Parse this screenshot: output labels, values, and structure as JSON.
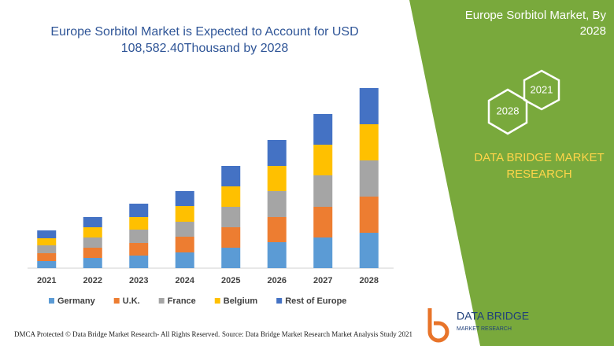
{
  "chart_data": {
    "type": "stacked-bar",
    "title": "Europe Sorbitol Market is Expected to Account for USD 108,582.40Thousand by 2028",
    "categories": [
      "2021",
      "2022",
      "2023",
      "2024",
      "2025",
      "2026",
      "2027",
      "2028"
    ],
    "series": [
      {
        "name": "Germany",
        "color": "#5b9bd5",
        "values": [
          9,
          13,
          16,
          20,
          26,
          33,
          39,
          45
        ]
      },
      {
        "name": "U.K.",
        "color": "#ed7d31",
        "values": [
          10,
          13,
          16,
          20,
          26,
          32,
          39,
          46
        ]
      },
      {
        "name": "France",
        "color": "#a5a5a5",
        "values": [
          10,
          13,
          17,
          19,
          26,
          33,
          40,
          46
        ]
      },
      {
        "name": "Belgium",
        "color": "#ffc000",
        "values": [
          9,
          13,
          16,
          20,
          26,
          32,
          39,
          46
        ]
      },
      {
        "name": "Rest of Europe",
        "color": "#4472c4",
        "values": [
          10,
          13,
          17,
          19,
          26,
          33,
          39,
          46
        ]
      }
    ]
  },
  "panel": {
    "title": "Europe Sorbitol Market, By 2028",
    "hex_start": "2021",
    "hex_end": "2028",
    "brand": "DATA BRIDGE MARKET RESEARCH"
  },
  "logo": {
    "name": "DATA BRIDGE",
    "tagline": "MARKET RESEARCH"
  },
  "footer": {
    "left": "DMCA Protected © Data Bridge Market Research- All Rights Reserved.",
    "right": "Source: Data Bridge Market Research Market Analysis Study 2021"
  }
}
